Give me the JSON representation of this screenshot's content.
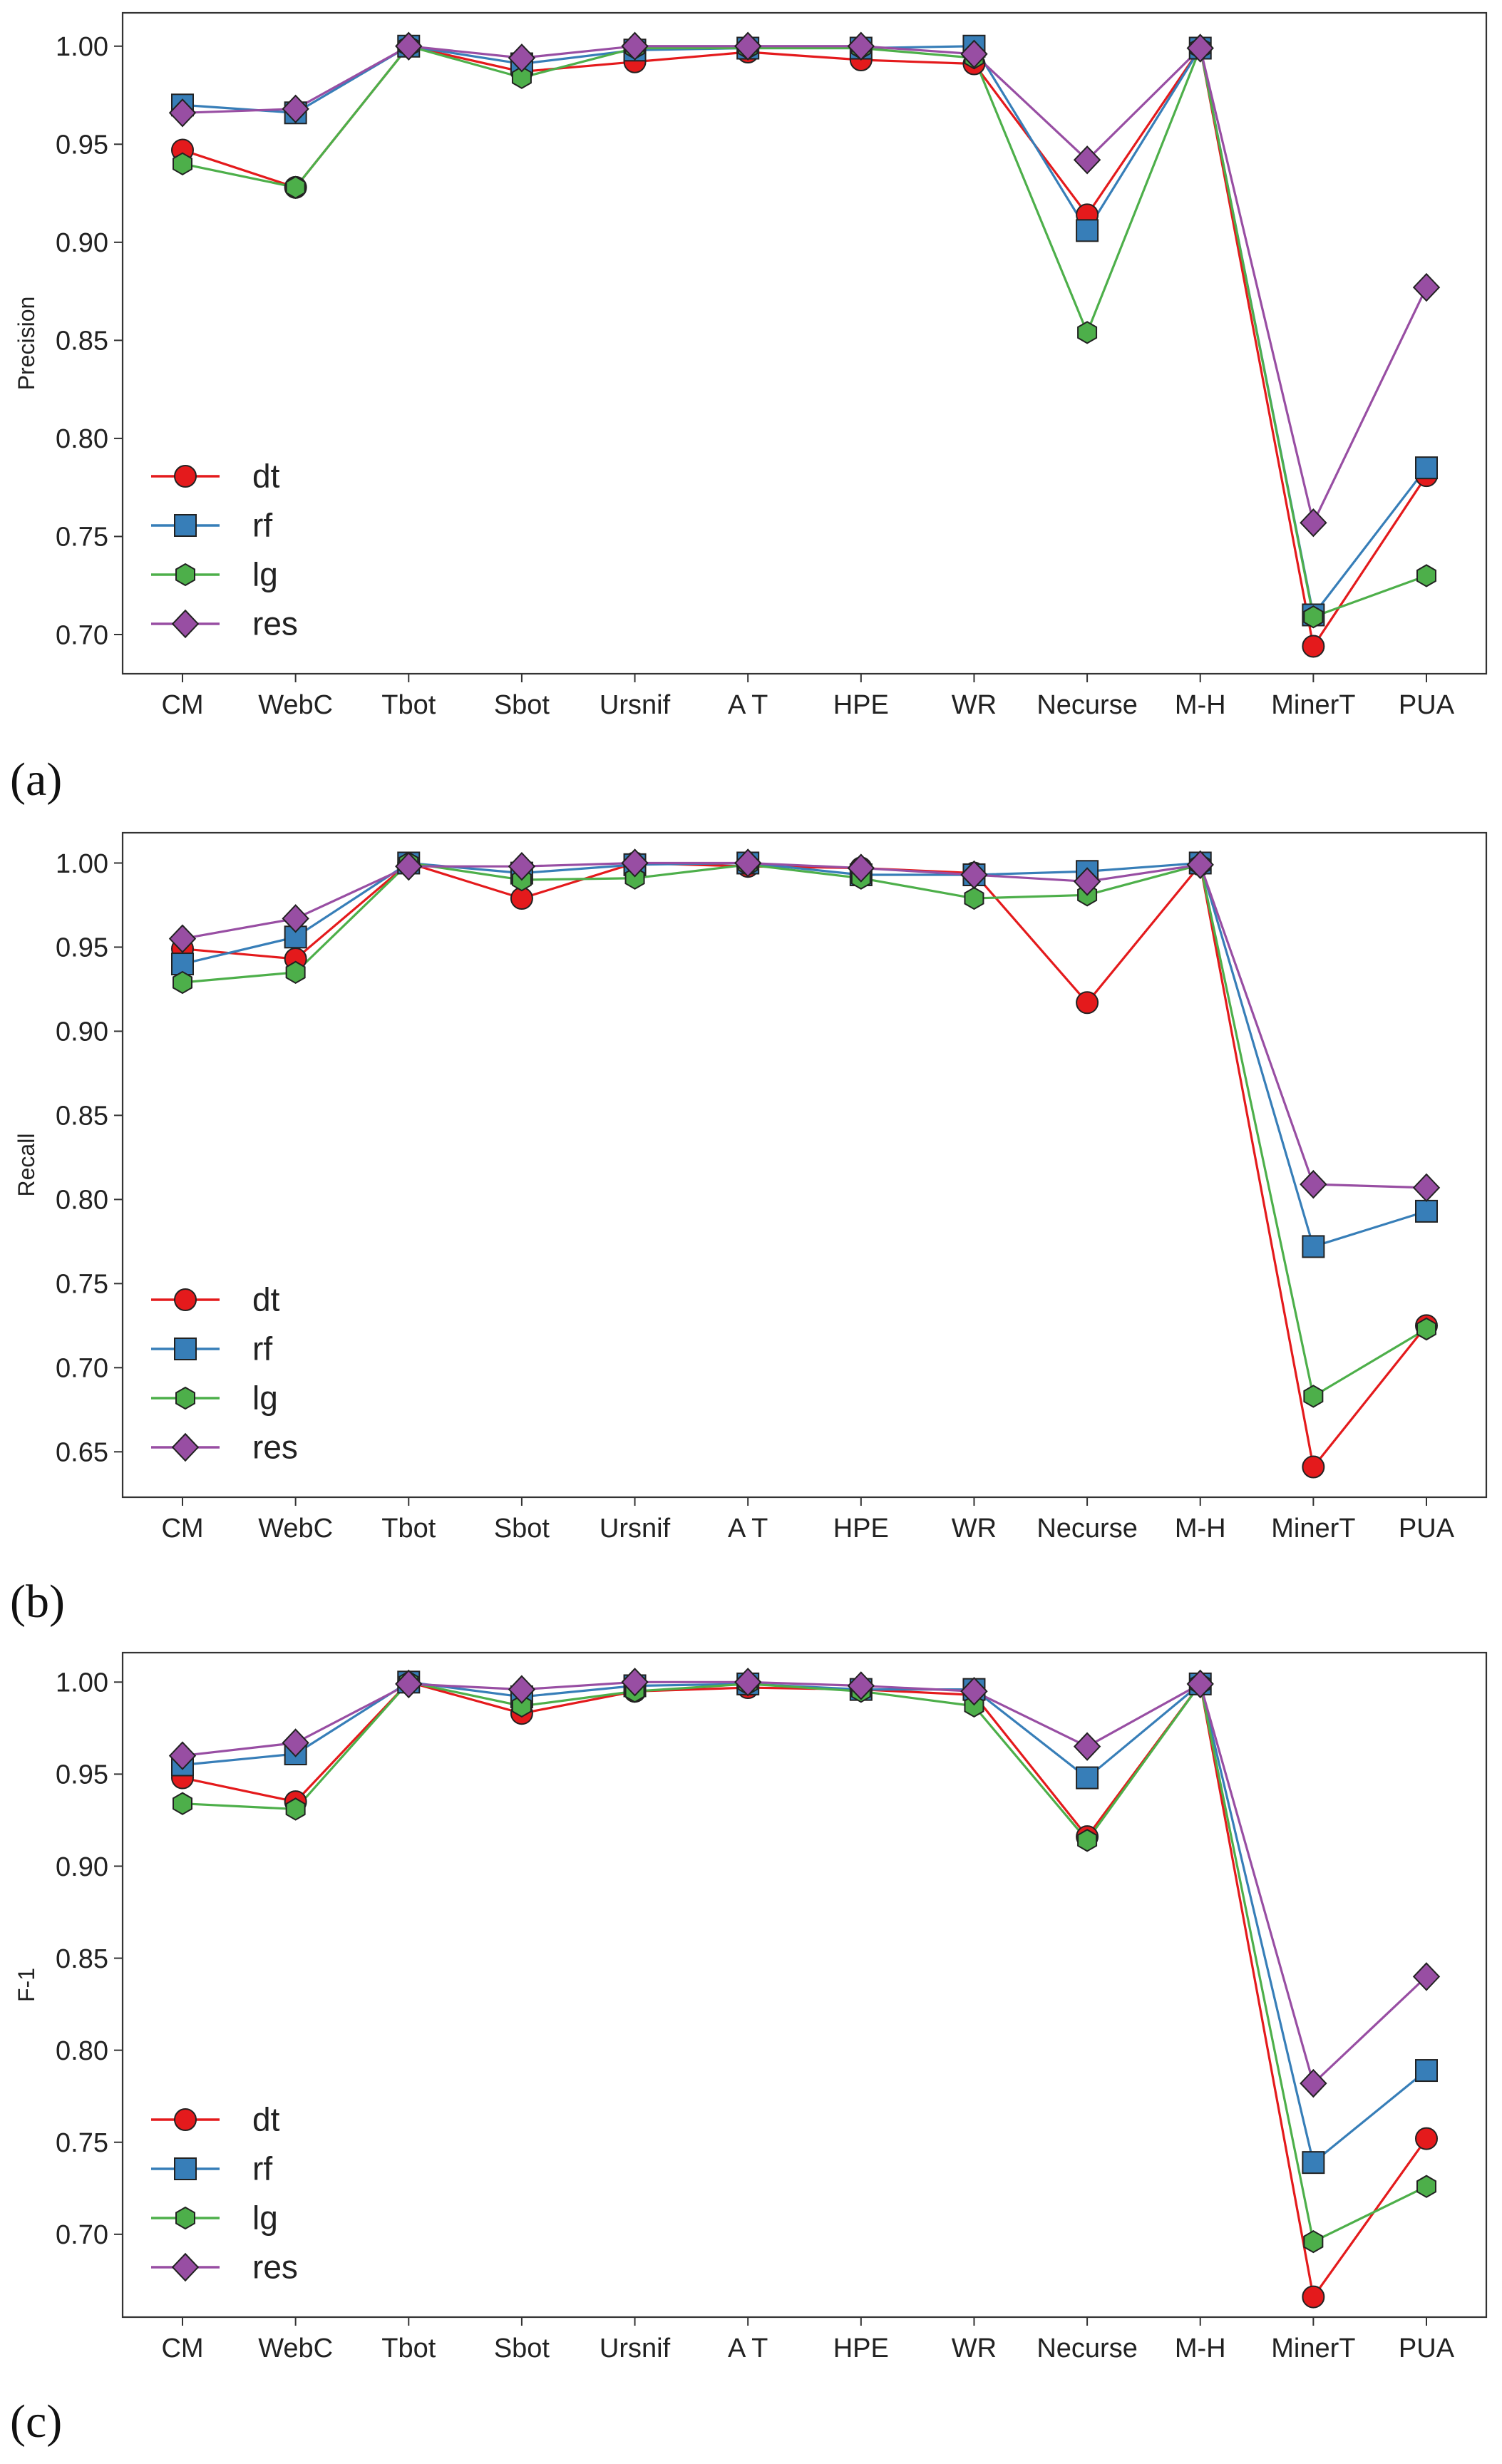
{
  "colors": {
    "dt": "#e41a1c",
    "rf": "#377eb8",
    "lg": "#4daf4a",
    "res": "#984ea3",
    "axis": "#333333",
    "marker_edge": "#222222"
  },
  "chart_data": [
    {
      "type": "line",
      "panel": "(a)",
      "ylabel": "Precision",
      "xlabel": "",
      "categories": [
        "CM",
        "WebC",
        "Tbot",
        "Sbot",
        "Ursnif",
        "A T",
        "HPE",
        "WR",
        "Necurse",
        "M-H",
        "MinerT",
        "PUA"
      ],
      "yticks": [
        "0.70",
        "0.75",
        "0.80",
        "0.85",
        "0.90",
        "0.95",
        "1.00"
      ],
      "ylim": [
        0.68,
        1.017
      ],
      "legend": "lower-left",
      "series": [
        {
          "name": "dt",
          "marker": "circle",
          "values": [
            0.947,
            0.928,
            1.0,
            0.987,
            0.992,
            0.997,
            0.993,
            0.991,
            0.914,
            0.999,
            0.694,
            0.781
          ]
        },
        {
          "name": "rf",
          "marker": "square",
          "values": [
            0.97,
            0.966,
            1.0,
            0.991,
            0.998,
            0.999,
            0.999,
            1.0,
            0.906,
            0.999,
            0.71,
            0.785
          ]
        },
        {
          "name": "lg",
          "marker": "hexagon",
          "values": [
            0.94,
            0.928,
            1.0,
            0.984,
            0.999,
            0.999,
            0.999,
            0.994,
            0.854,
            0.999,
            0.709,
            0.73
          ]
        },
        {
          "name": "res",
          "marker": "diamond",
          "values": [
            0.966,
            0.968,
            1.0,
            0.994,
            1.0,
            1.0,
            1.0,
            0.996,
            0.942,
            0.999,
            0.757,
            0.877
          ]
        }
      ]
    },
    {
      "type": "line",
      "panel": "(b)",
      "ylabel": "Recall",
      "xlabel": "",
      "categories": [
        "CM",
        "WebC",
        "Tbot",
        "Sbot",
        "Ursnif",
        "A T",
        "HPE",
        "WR",
        "Necurse",
        "M-H",
        "MinerT",
        "PUA"
      ],
      "yticks": [
        "0.65",
        "0.70",
        "0.75",
        "0.80",
        "0.85",
        "0.90",
        "0.95",
        "1.00"
      ],
      "ylim": [
        0.623,
        1.018
      ],
      "legend": "lower-left",
      "series": [
        {
          "name": "dt",
          "marker": "circle",
          "values": [
            0.949,
            0.943,
            1.0,
            0.979,
            1.0,
            0.998,
            0.997,
            0.994,
            0.917,
            0.999,
            0.641,
            0.725
          ]
        },
        {
          "name": "rf",
          "marker": "square",
          "values": [
            0.94,
            0.956,
            1.0,
            0.994,
            0.999,
            1.0,
            0.993,
            0.993,
            0.995,
            1.0,
            0.772,
            0.793
          ]
        },
        {
          "name": "lg",
          "marker": "hexagon",
          "values": [
            0.929,
            0.935,
            1.0,
            0.99,
            0.991,
            0.999,
            0.991,
            0.979,
            0.981,
            0.999,
            0.683,
            0.723
          ]
        },
        {
          "name": "res",
          "marker": "diamond",
          "values": [
            0.955,
            0.967,
            0.998,
            0.998,
            1.0,
            1.0,
            0.997,
            0.993,
            0.989,
            0.999,
            0.809,
            0.807
          ]
        }
      ]
    },
    {
      "type": "line",
      "panel": "(c)",
      "ylabel": "F-1",
      "xlabel": "",
      "categories": [
        "CM",
        "WebC",
        "Tbot",
        "Sbot",
        "Ursnif",
        "A T",
        "HPE",
        "WR",
        "Necurse",
        "M-H",
        "MinerT",
        "PUA"
      ],
      "yticks": [
        "0.70",
        "0.75",
        "0.80",
        "0.85",
        "0.90",
        "0.95",
        "1.00"
      ],
      "ylim": [
        0.655,
        1.016
      ],
      "legend": "lower-left",
      "series": [
        {
          "name": "dt",
          "marker": "circle",
          "values": [
            0.948,
            0.935,
            1.0,
            0.983,
            0.995,
            0.997,
            0.996,
            0.993,
            0.916,
            0.999,
            0.666,
            0.752
          ]
        },
        {
          "name": "rf",
          "marker": "square",
          "values": [
            0.955,
            0.961,
            1.0,
            0.992,
            0.998,
            0.999,
            0.996,
            0.996,
            0.948,
            0.999,
            0.739,
            0.789
          ]
        },
        {
          "name": "lg",
          "marker": "hexagon",
          "values": [
            0.934,
            0.931,
            1.0,
            0.987,
            0.995,
            0.999,
            0.995,
            0.987,
            0.914,
            0.999,
            0.696,
            0.726
          ]
        },
        {
          "name": "res",
          "marker": "diamond",
          "values": [
            0.96,
            0.967,
            0.999,
            0.996,
            1.0,
            1.0,
            0.998,
            0.995,
            0.965,
            0.999,
            0.782,
            0.84
          ]
        }
      ]
    }
  ]
}
